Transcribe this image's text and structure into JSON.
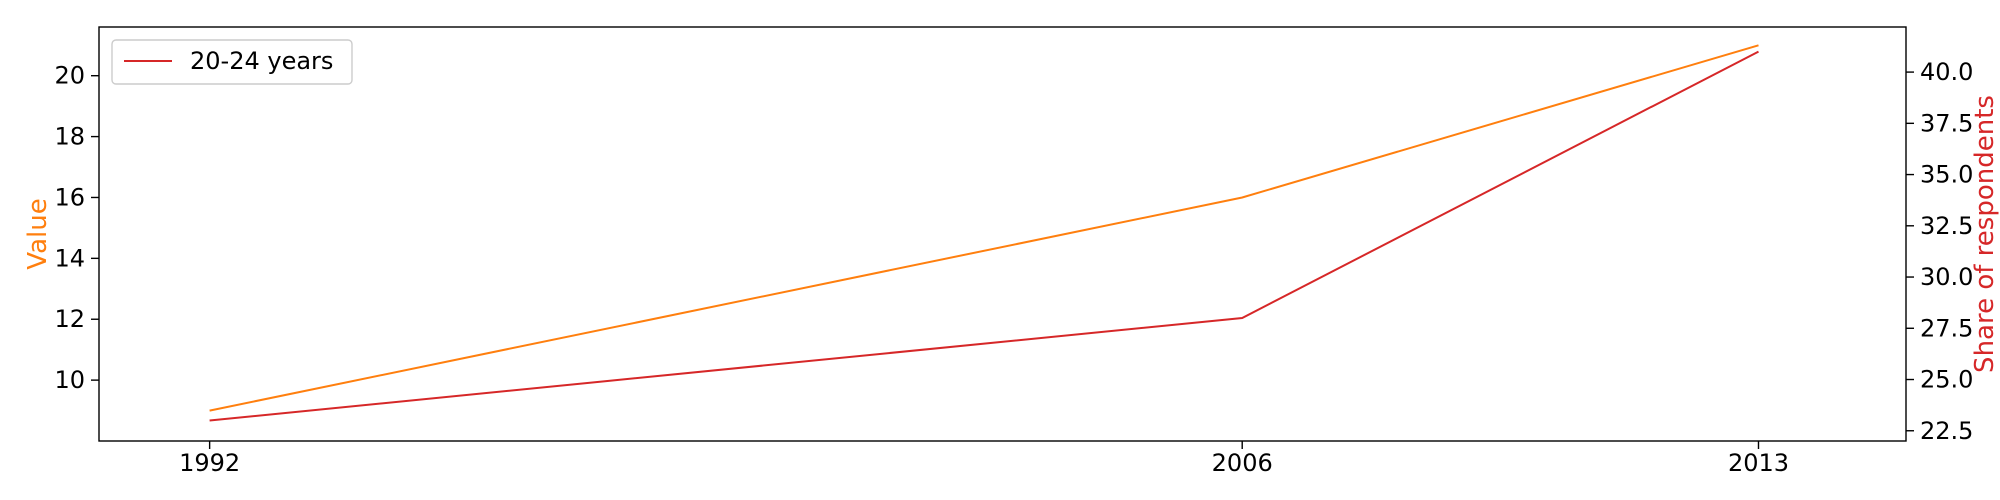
{
  "chart_data": {
    "type": "line",
    "x": [
      1992,
      2006,
      2013
    ],
    "x_tick_labels": [
      "1992",
      "2006",
      "2013"
    ],
    "series": [
      {
        "axis": "left",
        "color": "#ff7f0e",
        "values": [
          9.0,
          16.0,
          21.0
        ]
      },
      {
        "name": "20-24 years",
        "axis": "right",
        "color": "#d62728",
        "values": [
          23.0,
          28.0,
          41.0
        ]
      }
    ],
    "left_axis": {
      "label": "Value",
      "label_color": "#ff7f0e",
      "range": [
        8.0,
        21.6
      ],
      "ticks": [
        10,
        12,
        14,
        16,
        18,
        20
      ],
      "tick_labels": [
        "10",
        "12",
        "14",
        "16",
        "18",
        "20"
      ]
    },
    "right_axis": {
      "label": "Share of respondents",
      "label_color": "#d62728",
      "range": [
        22.0,
        42.2
      ],
      "ticks": [
        22.5,
        25.0,
        27.5,
        30.0,
        32.5,
        35.0,
        37.5,
        40.0
      ],
      "tick_labels": [
        "22.5",
        "25.0",
        "27.5",
        "30.0",
        "32.5",
        "35.0",
        "37.5",
        "40.0"
      ]
    },
    "x_range": [
      1990.5,
      2015
    ],
    "legend": {
      "placement": "top-left",
      "entries": [
        "20-24 years"
      ]
    },
    "grid": false
  }
}
